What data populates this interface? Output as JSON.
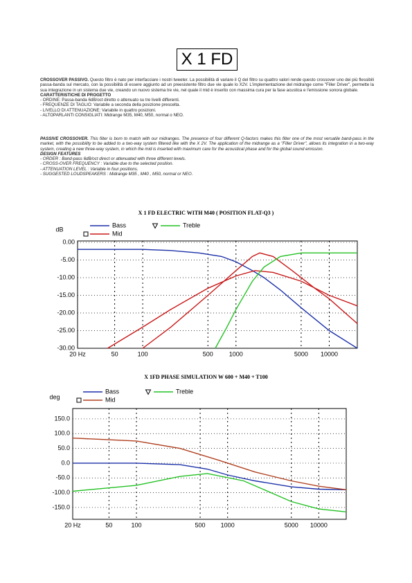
{
  "title": "X 1 FD",
  "italian": {
    "lead": "CROSSOVER PASSIVO.",
    "body": "Questo filtro è nato per interfacciare i nostri tweeter. La possibilità di variare il Q del filtro su quattro valori rende questo crossover uno dei più flessibili passa-banda sul mercato, con la possibilità di essere aggiunto ad un preesistente filtro due vie quale lo X2V. L'implementazione del midrange come \"Filler Driver\", permette la sua integrazione in un sistema due vie, creando un nuovo sistema tre vie, nel quale il mid è inserito con massima cura per la fase acustica e l'emissione sonora globale.",
    "heading": "CARATTERISTICHE DI PROGETTO",
    "items": [
      "- ORDINE: Passa-banda 6dB/oct diretto o attenuato su tre livelli differenti.",
      "- FREQUENZE DI TAGLIO: Variabile a seconda della posizione prescelta.",
      "- LIVELLO DI ATTENUAZIONE: Variabile in quattro posizioni.",
      "- ALTOPARLANTI CONSIGLIATI: Midrange M35, M40, M50, normal o NEO."
    ]
  },
  "english": {
    "lead": "PASSIVE CROSSOVER.",
    "body": "This filter is born to match with our midranges. The presence of four different Q-factors makes this filter one of the most versatile band-pass in the market, with the possibility to be added to a two-way system filtered like with the X 2V. The application of the midrange as a \"Filler Driver\", allows its integration in a two-way system, creating a new three-way system, in which the mid is inserted with maximum care for the acoustical phase and for the global sound emission.",
    "heading": "DESIGN FEATURES",
    "items": [
      "- ORDER : Band-pass 6dB/oct direct or attenuated with three different levels.",
      "- CROSS-OVER FREQUENCY : Variable due to the selected position.",
      "- ATTENUATION LEVEL : Variable in four positions.",
      "- SUGGESTED LOUDSPEAKERS : Midrange M35 , M40 , M50, normal or NEO."
    ]
  },
  "chart_data": [
    {
      "type": "line",
      "title": "X 1 FD ELECTRIC WITH M40 ( POSITION FLAT-Q3 )",
      "ylabel": "dB",
      "xscale": "log",
      "grid": true,
      "xlim": [
        20,
        20000
      ],
      "ylim": [
        -30,
        0.4
      ],
      "xticks": [
        {
          "value": 20,
          "label": "20 Hz"
        },
        50,
        100,
        500,
        1000,
        5000,
        10000
      ],
      "yticks": [
        {
          "value": 0,
          "label": "0.00"
        },
        {
          "value": -5,
          "label": "-5.00"
        },
        {
          "value": -10,
          "label": "-10.00"
        },
        {
          "value": -15,
          "label": "-15.00"
        },
        {
          "value": -20,
          "label": "-20.00"
        },
        {
          "value": -25,
          "label": "-25.00"
        },
        {
          "value": -30,
          "label": "-30.00"
        }
      ],
      "series": [
        {
          "name": "Bass",
          "color": "#1a2fa8",
          "x": [
            20,
            50,
            100,
            200,
            400,
            700,
            1000,
            1500,
            2000,
            3000,
            5000,
            10000,
            20000
          ],
          "values": [
            -2,
            -2,
            -2,
            -2.3,
            -3,
            -4,
            -5.5,
            -8,
            -10,
            -13.5,
            -18.5,
            -25,
            -30
          ]
        },
        {
          "name": "Mid",
          "color": "#c81818",
          "x": [
            42,
            100,
            200,
            500,
            1000,
            1600,
            2500,
            5000,
            10000,
            20000
          ],
          "values": [
            -30,
            -24,
            -19,
            -13,
            -9.5,
            -8,
            -8.5,
            -11,
            -15,
            -18
          ]
        },
        {
          "color": "#c81818",
          "x": [
            100,
            200,
            500,
            1000,
            1500,
            1800,
            2500,
            4000,
            7000,
            10000,
            20000
          ],
          "values": [
            -30,
            -24,
            -15,
            -8,
            -4,
            -3,
            -4,
            -8,
            -13,
            -16,
            -23
          ]
        },
        {
          "name": "Treble",
          "color": "#22c022",
          "x": [
            600,
            800,
            1000,
            1500,
            2000,
            3000,
            5000,
            10000,
            20000
          ],
          "values": [
            -30,
            -24,
            -19,
            -11,
            -7,
            -4,
            -3,
            -3,
            -3
          ]
        }
      ]
    },
    {
      "type": "line",
      "title": "X 1FD  PHASE SIMULATION W 600 +  M40 + T100",
      "ylabel": "deg",
      "xscale": "log",
      "grid": true,
      "xlim": [
        20,
        20000
      ],
      "ylim": [
        -190,
        185
      ],
      "xticks": [
        {
          "value": 20,
          "label": "20 Hz"
        },
        50,
        100,
        500,
        1000,
        5000,
        10000
      ],
      "yticks": [
        {
          "value": 150,
          "label": "150.0"
        },
        {
          "value": 100,
          "label": "100.0"
        },
        {
          "value": 50,
          "label": "50.0"
        },
        {
          "value": 0,
          "label": "0.0"
        },
        {
          "value": -50,
          "label": "-50.0"
        },
        {
          "value": -100,
          "label": "-100.0"
        },
        {
          "value": -150,
          "label": "-150.0"
        }
      ],
      "series": [
        {
          "name": "Bass",
          "color": "#1a2fa8",
          "x": [
            20,
            100,
            300,
            600,
            1000,
            2000,
            5000,
            10000,
            20000
          ],
          "values": [
            0,
            0,
            -5,
            -20,
            -40,
            -60,
            -80,
            -88,
            -90
          ]
        },
        {
          "name": "Mid",
          "color": "#b04020",
          "x": [
            20,
            100,
            300,
            800,
            2000,
            5000,
            10000,
            20000
          ],
          "values": [
            85,
            75,
            50,
            10,
            -30,
            -60,
            -78,
            -90
          ]
        },
        {
          "name": "Treble",
          "color": "#22c022",
          "x": [
            20,
            100,
            300,
            600,
            1500,
            3000,
            5000,
            10000,
            20000
          ],
          "values": [
            -95,
            -75,
            -45,
            -35,
            -60,
            -100,
            -130,
            -155,
            -165
          ]
        }
      ]
    }
  ]
}
